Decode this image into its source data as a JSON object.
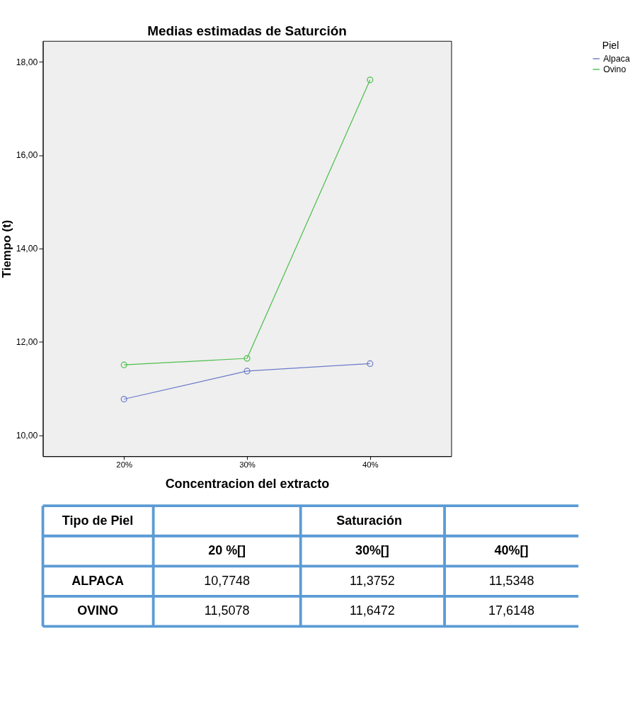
{
  "chart_data": {
    "type": "line",
    "title": "Medias estimadas de Saturción",
    "xlabel": "Concentracion del extracto",
    "ylabel": "Tiempo (t)",
    "legend_title": "Piel",
    "legend": "top right",
    "categories": [
      "20%",
      "30%",
      "40%"
    ],
    "series": [
      {
        "name": "Alpaca",
        "color": "#6b7bc9",
        "values": [
          10.7748,
          11.3752,
          11.5348
        ]
      },
      {
        "name": "Ovino",
        "color": "#4cbf4c",
        "values": [
          11.5078,
          11.6472,
          17.6148
        ]
      }
    ],
    "ylim": [
      9.55,
      18.45
    ],
    "yticks": [
      {
        "value": 10,
        "label": "10,00"
      },
      {
        "value": 12,
        "label": "12,00"
      },
      {
        "value": 14,
        "label": "14,00"
      },
      {
        "value": 16,
        "label": "16,00"
      },
      {
        "value": 18,
        "label": "18,00"
      }
    ],
    "marker": "circle",
    "line_style": "solid",
    "grid": false,
    "annotations": [
      "Tipo de Piel",
      "Saturación",
      "20 %[]",
      "30%[]",
      "40%[]",
      "ALPACA",
      "OVINO",
      "10,7748",
      "11,3752",
      "11,5348",
      "11,5078",
      "11,6472",
      "17,6148"
    ]
  }
}
